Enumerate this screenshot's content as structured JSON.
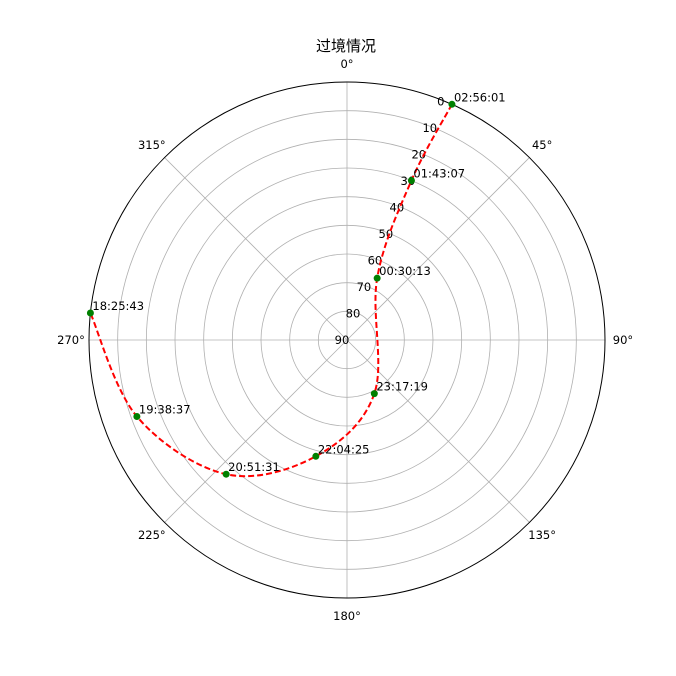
{
  "chart_data": {
    "type": "polar-line",
    "title": "过境情况",
    "theta_tick_labels": [
      "0°",
      "45°",
      "90°",
      "135°",
      "180°",
      "225°",
      "270°",
      "315°"
    ],
    "theta_tick_degrees": [
      0,
      45,
      90,
      135,
      180,
      225,
      270,
      315
    ],
    "r_tick_labels": [
      "0",
      "10",
      "20",
      "30",
      "40",
      "50",
      "60",
      "70",
      "80",
      "90"
    ],
    "r_tick_values": [
      0,
      10,
      20,
      30,
      40,
      50,
      60,
      70,
      80,
      90
    ],
    "r_tick_label_angle_deg": 22.5,
    "rlim": [
      90,
      0
    ],
    "grid": true,
    "series": [
      {
        "line_color": "#ff0000",
        "line_style": "dashed",
        "marker_color": "#008000",
        "points": [
          {
            "label": "02:56:01",
            "azimuth": 24,
            "elevation": 0
          },
          {
            "label": "01:43:07",
            "azimuth": 22,
            "elevation": 30
          },
          {
            "label": "00:30:13",
            "azimuth": 26,
            "elevation": 66
          },
          {
            "label": "23:17:19",
            "azimuth": 153,
            "elevation": 69
          },
          {
            "label": "22:04:25",
            "azimuth": 195,
            "elevation": 48
          },
          {
            "label": "20:51:31",
            "azimuth": 222,
            "elevation": 27
          },
          {
            "label": "19:38:37",
            "azimuth": 250,
            "elevation": 12
          },
          {
            "label": "18:25:43",
            "azimuth": 276,
            "elevation": 0
          }
        ]
      }
    ]
  }
}
